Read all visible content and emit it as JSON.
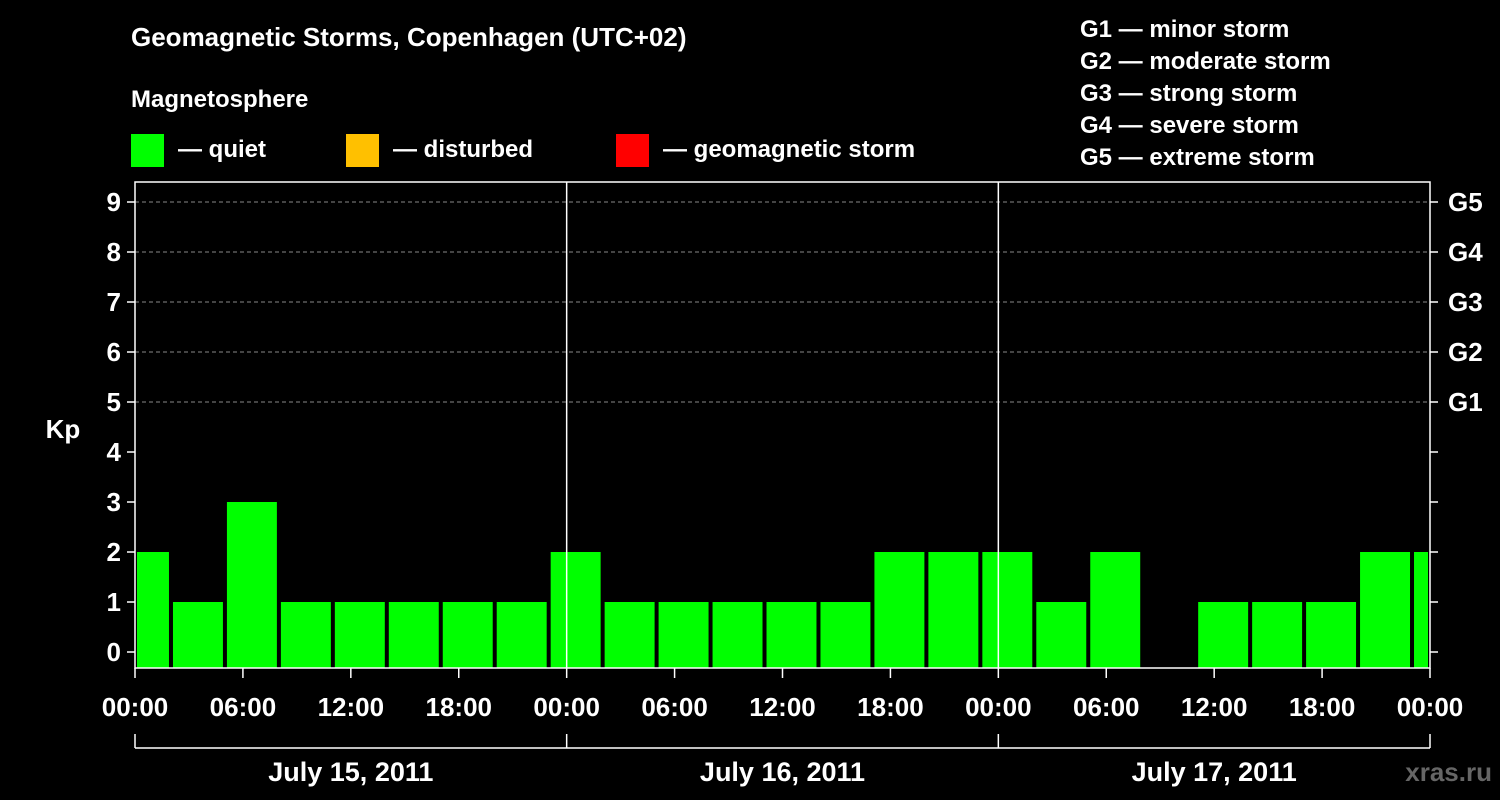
{
  "title": "Geomagnetic Storms, Copenhagen (UTC+02)",
  "subtitle": "Magnetosphere",
  "legend": [
    {
      "label": "— quiet",
      "color": "#00ff00"
    },
    {
      "label": "— disturbed",
      "color": "#ffc000"
    },
    {
      "label": "— geomagnetic storm",
      "color": "#ff0000"
    }
  ],
  "g_scale": [
    "G1 — minor storm",
    "G2 — moderate storm",
    "G3 — strong storm",
    "G4 — severe storm",
    "G5 — extreme storm"
  ],
  "watermark": "xras.ru",
  "chart_data": {
    "type": "bar",
    "ylabel": "Kp",
    "ylim": [
      0,
      9
    ],
    "y_ticks": [
      "0",
      "1",
      "2",
      "3",
      "4",
      "5",
      "6",
      "7",
      "8",
      "9"
    ],
    "right_ticks": [
      {
        "value": 5,
        "label": "G1"
      },
      {
        "value": 6,
        "label": "G2"
      },
      {
        "value": 7,
        "label": "G3"
      },
      {
        "value": 8,
        "label": "G4"
      },
      {
        "value": 9,
        "label": "G5"
      }
    ],
    "x_tick_labels": [
      "00:00",
      "06:00",
      "12:00",
      "18:00",
      "00:00",
      "06:00",
      "12:00",
      "18:00",
      "00:00",
      "06:00",
      "12:00",
      "18:00",
      "00:00"
    ],
    "days": [
      "July 15, 2011",
      "July 16, 2011",
      "July 17, 2011"
    ],
    "bar_color": "#00ff00",
    "bars": [
      {
        "start_h": 0,
        "end_h": 2,
        "value": 2
      },
      {
        "start_h": 2,
        "end_h": 5,
        "value": 1
      },
      {
        "start_h": 5,
        "end_h": 8,
        "value": 3
      },
      {
        "start_h": 8,
        "end_h": 11,
        "value": 1
      },
      {
        "start_h": 11,
        "end_h": 14,
        "value": 1
      },
      {
        "start_h": 14,
        "end_h": 17,
        "value": 1
      },
      {
        "start_h": 17,
        "end_h": 20,
        "value": 1
      },
      {
        "start_h": 20,
        "end_h": 23,
        "value": 1
      },
      {
        "start_h": 23,
        "end_h": 26,
        "value": 2
      },
      {
        "start_h": 26,
        "end_h": 29,
        "value": 1
      },
      {
        "start_h": 29,
        "end_h": 32,
        "value": 1
      },
      {
        "start_h": 32,
        "end_h": 35,
        "value": 1
      },
      {
        "start_h": 35,
        "end_h": 38,
        "value": 1
      },
      {
        "start_h": 38,
        "end_h": 41,
        "value": 1
      },
      {
        "start_h": 41,
        "end_h": 44,
        "value": 2
      },
      {
        "start_h": 44,
        "end_h": 47,
        "value": 2
      },
      {
        "start_h": 47,
        "end_h": 50,
        "value": 2
      },
      {
        "start_h": 50,
        "end_h": 53,
        "value": 1
      },
      {
        "start_h": 53,
        "end_h": 56,
        "value": 2
      },
      {
        "start_h": 56,
        "end_h": 59,
        "value": 0
      },
      {
        "start_h": 59,
        "end_h": 62,
        "value": 1
      },
      {
        "start_h": 62,
        "end_h": 65,
        "value": 1
      },
      {
        "start_h": 65,
        "end_h": 68,
        "value": 1
      },
      {
        "start_h": 68,
        "end_h": 71,
        "value": 2
      },
      {
        "start_h": 71,
        "end_h": 72,
        "value": 2
      }
    ],
    "grid": true
  }
}
